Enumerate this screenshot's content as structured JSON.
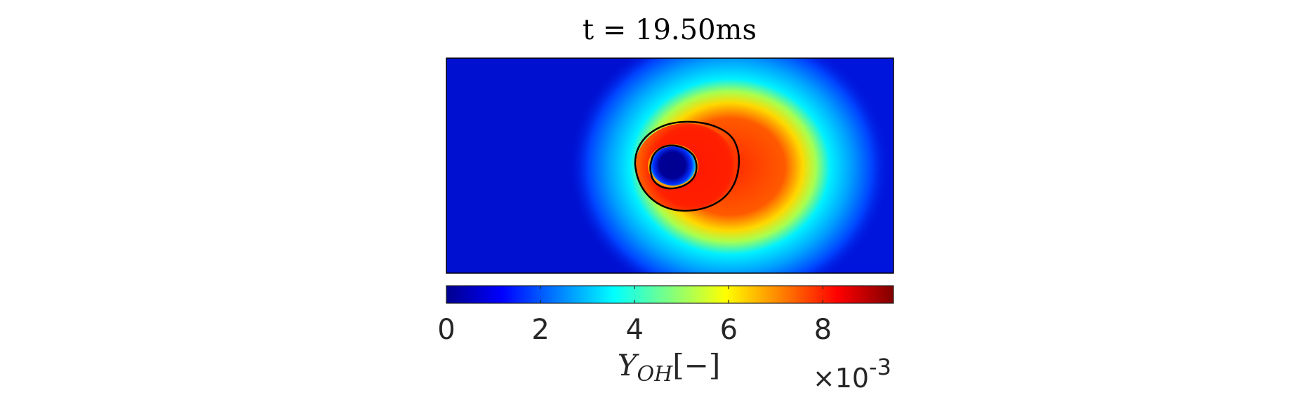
{
  "chart_data": {
    "type": "heatmap",
    "title": "t = 19.50ms",
    "colormap": "jet",
    "colorbar": {
      "label_main": "Y",
      "label_sub": "OH",
      "label_unit": "[−]",
      "ticks": [
        "0",
        "2",
        "4",
        "6",
        "8"
      ],
      "tick_values": [
        0,
        2,
        4,
        6,
        8
      ],
      "range": [
        0,
        9.5
      ],
      "multiplier_prefix": "×10",
      "multiplier_exponent": "-3",
      "placement": "bottom"
    },
    "field": {
      "background_value": 0.3,
      "peak_value": 9.0,
      "core_value": 0.0,
      "features": [
        "inner low-value core",
        "high-value ring",
        "diffuse halo"
      ]
    },
    "contours": [
      {
        "name": "outer-contour"
      },
      {
        "name": "inner-contour"
      }
    ]
  }
}
